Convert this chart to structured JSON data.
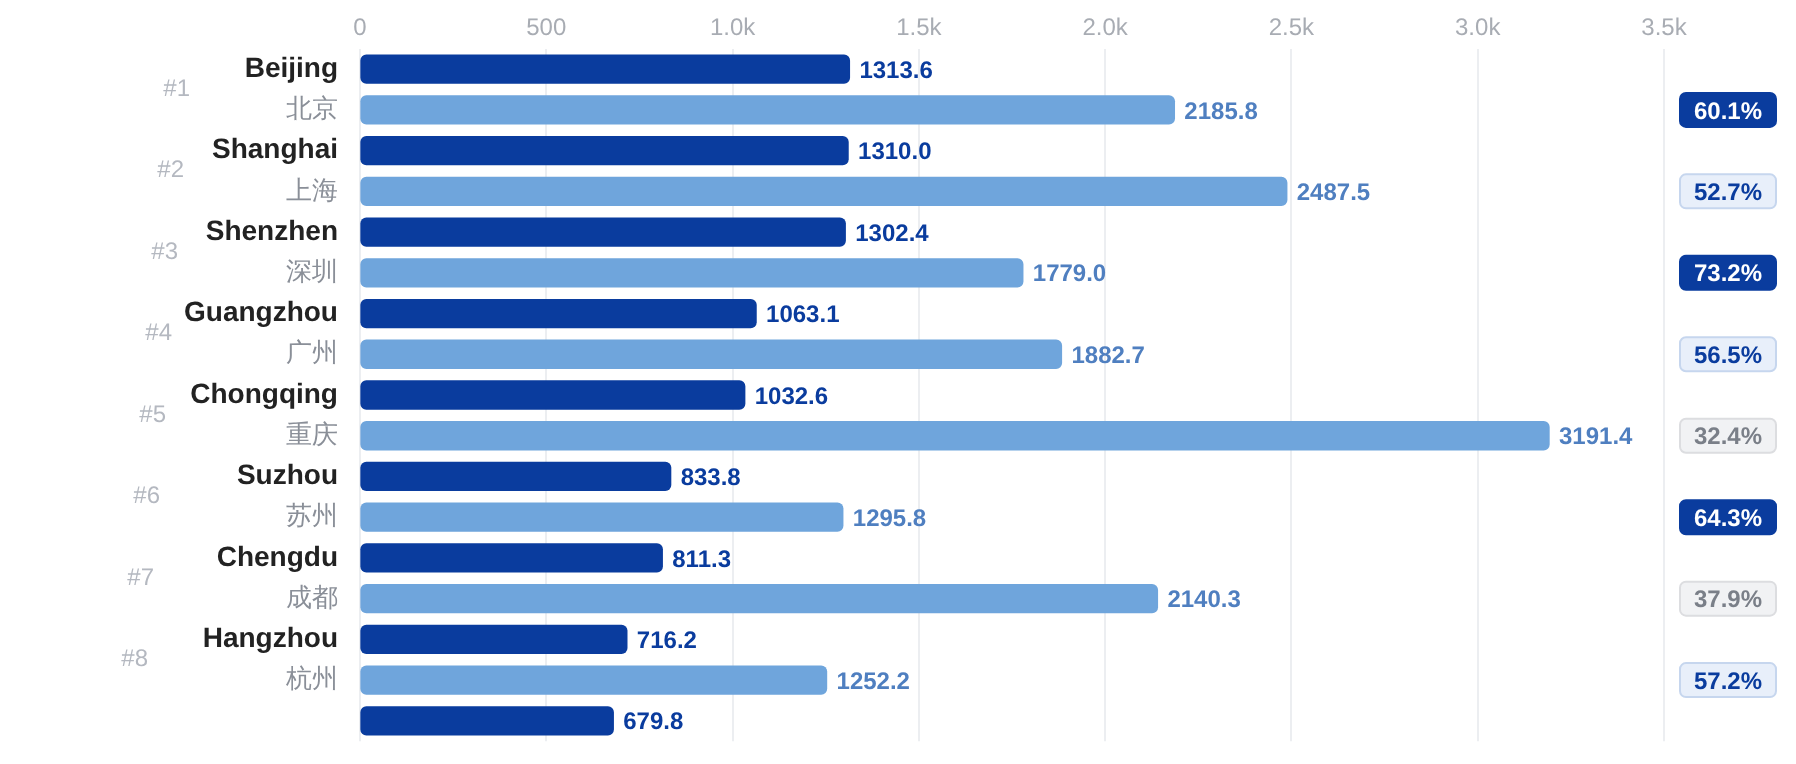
{
  "chart_data": {
    "type": "bar",
    "orientation": "horizontal",
    "categories": [
      "Beijing",
      "北京",
      "Shanghai",
      "上海",
      "Shenzhen",
      "深圳",
      "Guangzhou",
      "广州",
      "Chongqing",
      "重庆",
      "Suzhou",
      "苏州",
      "Chengdu",
      "成都",
      "Hangzhou",
      "杭州",
      null
    ],
    "values": [
      1313.6,
      2185.8,
      1310.0,
      2487.5,
      1302.4,
      1779.0,
      1063.1,
      1882.7,
      1032.6,
      3191.4,
      833.8,
      1295.8,
      811.3,
      2140.3,
      716.2,
      1252.2,
      679.8
    ],
    "colors": [
      "#0a3c9e",
      "#6fa5dc",
      "#0a3c9e",
      "#6fa5dc",
      "#0a3c9e",
      "#6fa5dc",
      "#0a3c9e",
      "#6fa5dc",
      "#0a3c9e",
      "#6fa5dc",
      "#0a3c9e",
      "#6fa5dc",
      "#0a3c9e",
      "#6fa5dc",
      "#0a3c9e",
      "#6fa5dc",
      "#0a3c9e"
    ],
    "xlim": [
      0,
      3500
    ],
    "xticks": [
      0,
      500,
      {
        "value": 1000,
        "label": "1.0k"
      },
      {
        "value": 1500,
        "label": "1.5k"
      },
      {
        "value": 2000,
        "label": "2.0k"
      },
      {
        "value": 2500,
        "label": "2.5k"
      },
      {
        "value": 3000,
        "label": "3.0k"
      },
      {
        "value": 3500,
        "label": "3.5k"
      }
    ],
    "value_labels": [
      "1313.6",
      "2185.8",
      "1310.0",
      "2487.5",
      "1302.4",
      "1779.0",
      "1063.1",
      "1882.7",
      "1032.6",
      "3191.4",
      "833.8",
      "1295.8",
      "811.3",
      "2140.3",
      "716.2",
      "1252.2",
      "679.8"
    ],
    "grid": "x",
    "legend": false,
    "annotations": [
      "#1",
      "#2",
      "#3",
      "#4",
      "#5",
      "#6",
      "#7",
      "#8",
      "60.1%",
      "52.7%",
      "73.2%",
      "56.5%",
      "32.4%",
      "64.3%",
      "37.9%",
      "57.2%"
    ]
  }
}
